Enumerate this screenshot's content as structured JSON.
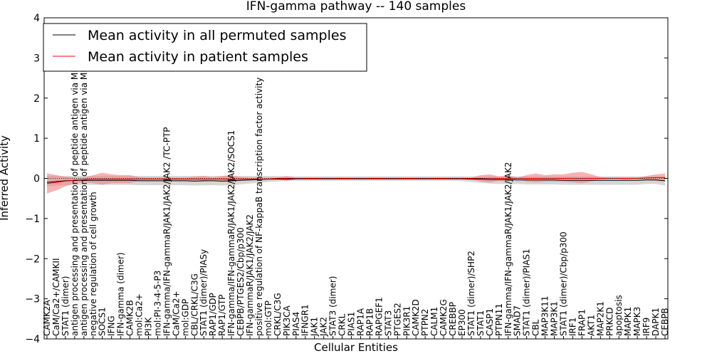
{
  "chart_data": {
    "type": "line",
    "title": "IFN-gamma pathway -- 140 samples",
    "xlabel": "Cellular Entities",
    "ylabel": "Inferred Activity",
    "ylim": [
      -4,
      4
    ],
    "yticks": [
      "−4",
      "−3",
      "−2",
      "−1",
      "0",
      "1",
      "2",
      "3",
      "4"
    ],
    "grid": false,
    "legend_position": "top-left",
    "colors": {
      "permuted": "#000000",
      "patient": "#ff0000",
      "patient_band": "#f08080",
      "permuted_band": "#c8c8c8"
    },
    "categories": [
      "CAMK2A",
      "CaM/Ca2+/CAMKII",
      "STAT1 (dimer)",
      "antigen processing and presentation of peptide antigen via MHC class I",
      "antigen processing and presentation of peptide antigen via MHC class II",
      "negative regulation of cell growth",
      "SOCS1",
      "IFNG",
      "IFN-gamma (dimer)",
      "CAMK2B",
      "mol:Ca2+",
      "PI3K",
      "mol:PI-3-4-5-P3",
      "IFN-gamma/IFN-gammaR/JAK1/JAK2/JAK2 /TC-PTP",
      "CaM/Ca2+",
      "mol:GDP",
      "CBL/CRKL/C3G",
      "STAT1 (dimer)/PIASy",
      "RAP1/GDP",
      "RAP1/GTP",
      "IFN-gamma/IFN-gammaR/JAK1/JAK2/JAK2/SOCS1",
      "CEBPB/PTGES2/Cbp/p300",
      "IFN-gammaR/JAK1/JAK2/JAK2",
      "positive regulation of NF-kappaB transcription factor activity",
      "mol:GTP",
      "CRKL/C3G",
      "PIK3CA",
      "PIAS4",
      "IFNGR1",
      "JAK1",
      "JAK2",
      "STAT3 (dimer)",
      "CRKL",
      "PIAS1",
      "RAP1A",
      "RAP1B",
      "RAPGEF1",
      "STAT3",
      "PTGES2",
      "PIK3R1",
      "CAMK2D",
      "PTPN2",
      "CALM1",
      "CAMK2G",
      "CREBBP",
      "EP300",
      "STAT1 (dimer)/SHP2",
      "STAT1",
      "CASP1",
      "PTPN11",
      "IFN-gamma/IFN-gammaR/JAK1/JAK2/JAK2",
      "SMAD7",
      "STAT1 (dimer)/PIAS1",
      "CBL",
      "MAP3K11",
      "MAP3K1",
      "STAT1 (dimer)/Cbp/p300",
      "IRF1",
      "FRAP1",
      "AKT1",
      "MAP2K1",
      "PRKCD",
      "apoptosis",
      "MAPK1",
      "MAPK3",
      "IRF9",
      "DAPK1",
      "CEBPB"
    ],
    "series": [
      {
        "name": "Mean activity in all permuted samples",
        "values": [
          -0.1,
          -0.08,
          -0.06,
          -0.05,
          -0.05,
          -0.05,
          -0.05,
          -0.05,
          -0.05,
          -0.05,
          -0.06,
          -0.06,
          -0.06,
          -0.06,
          -0.06,
          -0.06,
          -0.07,
          -0.06,
          -0.06,
          -0.07,
          -0.06,
          -0.05,
          -0.04,
          -0.03,
          -0.02,
          -0.02,
          -0.02,
          -0.01,
          -0.01,
          -0.01,
          -0.01,
          -0.01,
          -0.01,
          -0.01,
          -0.01,
          -0.01,
          -0.01,
          -0.01,
          -0.01,
          -0.01,
          -0.01,
          -0.01,
          -0.01,
          -0.01,
          -0.01,
          -0.01,
          -0.02,
          -0.02,
          -0.03,
          -0.03,
          -0.03,
          -0.04,
          -0.04,
          -0.04,
          -0.04,
          -0.04,
          -0.05,
          -0.05,
          -0.05,
          -0.05,
          -0.05,
          -0.05,
          -0.05,
          -0.05,
          -0.05,
          -0.04,
          -0.04,
          -0.06
        ],
        "upper": [
          0.06,
          0.06,
          0.06,
          0.06,
          0.06,
          0.06,
          0.06,
          0.06,
          0.06,
          0.06,
          0.06,
          0.06,
          0.06,
          0.06,
          0.06,
          0.06,
          0.06,
          0.06,
          0.06,
          0.06,
          0.06,
          0.06,
          0.06,
          0.06,
          0.06,
          0.06,
          0.05,
          0.05,
          0.05,
          0.05,
          0.05,
          0.05,
          0.05,
          0.05,
          0.05,
          0.05,
          0.05,
          0.05,
          0.05,
          0.05,
          0.05,
          0.05,
          0.05,
          0.05,
          0.05,
          0.05,
          0.05,
          0.05,
          0.05,
          0.05,
          0.05,
          0.05,
          0.05,
          0.05,
          0.05,
          0.05,
          0.05,
          0.05,
          0.05,
          0.05,
          0.05,
          0.05,
          0.05,
          0.05,
          0.05,
          0.05,
          0.05,
          0.05
        ],
        "lower": [
          -0.2,
          -0.18,
          -0.17,
          -0.16,
          -0.16,
          -0.16,
          -0.16,
          -0.16,
          -0.16,
          -0.16,
          -0.17,
          -0.17,
          -0.17,
          -0.17,
          -0.17,
          -0.17,
          -0.18,
          -0.17,
          -0.17,
          -0.18,
          -0.17,
          -0.15,
          -0.13,
          -0.11,
          -0.09,
          -0.08,
          -0.07,
          -0.06,
          -0.06,
          -0.06,
          -0.06,
          -0.06,
          -0.06,
          -0.06,
          -0.06,
          -0.06,
          -0.06,
          -0.06,
          -0.06,
          -0.06,
          -0.06,
          -0.06,
          -0.06,
          -0.06,
          -0.06,
          -0.07,
          -0.09,
          -0.11,
          -0.13,
          -0.14,
          -0.14,
          -0.14,
          -0.15,
          -0.15,
          -0.15,
          -0.15,
          -0.16,
          -0.16,
          -0.16,
          -0.16,
          -0.16,
          -0.16,
          -0.16,
          -0.16,
          -0.16,
          -0.14,
          -0.14,
          -0.18
        ]
      },
      {
        "name": "Mean activity in patient samples",
        "values": [
          -0.13,
          -0.1,
          -0.07,
          -0.05,
          -0.03,
          -0.02,
          -0.02,
          -0.02,
          -0.02,
          -0.02,
          -0.02,
          -0.02,
          -0.02,
          -0.02,
          -0.02,
          -0.02,
          -0.02,
          -0.02,
          -0.02,
          -0.02,
          -0.02,
          -0.02,
          -0.02,
          -0.02,
          -0.02,
          0.0,
          0.0,
          0.0,
          0.0,
          0.0,
          0.0,
          0.0,
          0.0,
          0.0,
          0.0,
          0.0,
          0.0,
          0.0,
          0.0,
          0.0,
          0.0,
          0.0,
          0.0,
          0.0,
          0.0,
          0.0,
          0.0,
          0.0,
          0.0,
          0.0,
          0.0,
          0.0,
          0.0,
          0.0,
          0.0,
          0.0,
          0.0,
          0.0,
          0.0,
          0.0,
          0.0,
          0.0,
          0.0,
          0.0,
          0.0,
          0.01,
          0.02,
          0.02
        ],
        "upper": [
          0.13,
          0.08,
          0.04,
          0.02,
          0.02,
          0.08,
          0.14,
          0.1,
          0.08,
          0.08,
          0.03,
          0.02,
          0.02,
          0.02,
          0.02,
          0.02,
          0.04,
          0.06,
          0.02,
          0.06,
          0.08,
          0.03,
          0.02,
          0.02,
          0.02,
          0.02,
          0.06,
          0.02,
          0.02,
          0.02,
          0.02,
          0.02,
          0.02,
          0.02,
          0.02,
          0.02,
          0.02,
          0.02,
          0.02,
          0.02,
          0.02,
          0.02,
          0.02,
          0.02,
          0.02,
          0.02,
          0.02,
          0.08,
          0.1,
          0.05,
          0.08,
          0.02,
          0.08,
          0.12,
          0.08,
          0.1,
          0.1,
          0.14,
          0.16,
          0.1,
          0.03,
          0.02,
          0.02,
          0.02,
          0.02,
          0.06,
          0.1,
          0.12
        ],
        "lower": [
          -0.38,
          -0.3,
          -0.2,
          -0.12,
          -0.1,
          -0.12,
          -0.16,
          -0.12,
          -0.12,
          -0.12,
          -0.06,
          -0.05,
          -0.05,
          -0.05,
          -0.05,
          -0.05,
          -0.07,
          -0.08,
          -0.05,
          -0.08,
          -0.09,
          -0.05,
          -0.04,
          -0.04,
          -0.04,
          -0.02,
          -0.06,
          -0.02,
          -0.02,
          -0.02,
          -0.02,
          -0.02,
          -0.02,
          -0.02,
          -0.02,
          -0.02,
          -0.02,
          -0.02,
          -0.02,
          -0.02,
          -0.02,
          -0.02,
          -0.02,
          -0.02,
          -0.02,
          -0.02,
          -0.02,
          -0.08,
          -0.1,
          -0.06,
          -0.08,
          -0.02,
          -0.08,
          -0.1,
          -0.08,
          -0.08,
          -0.08,
          -0.1,
          -0.12,
          -0.08,
          -0.03,
          -0.02,
          -0.02,
          -0.02,
          -0.02,
          -0.04,
          -0.06,
          -0.08
        ]
      }
    ]
  }
}
